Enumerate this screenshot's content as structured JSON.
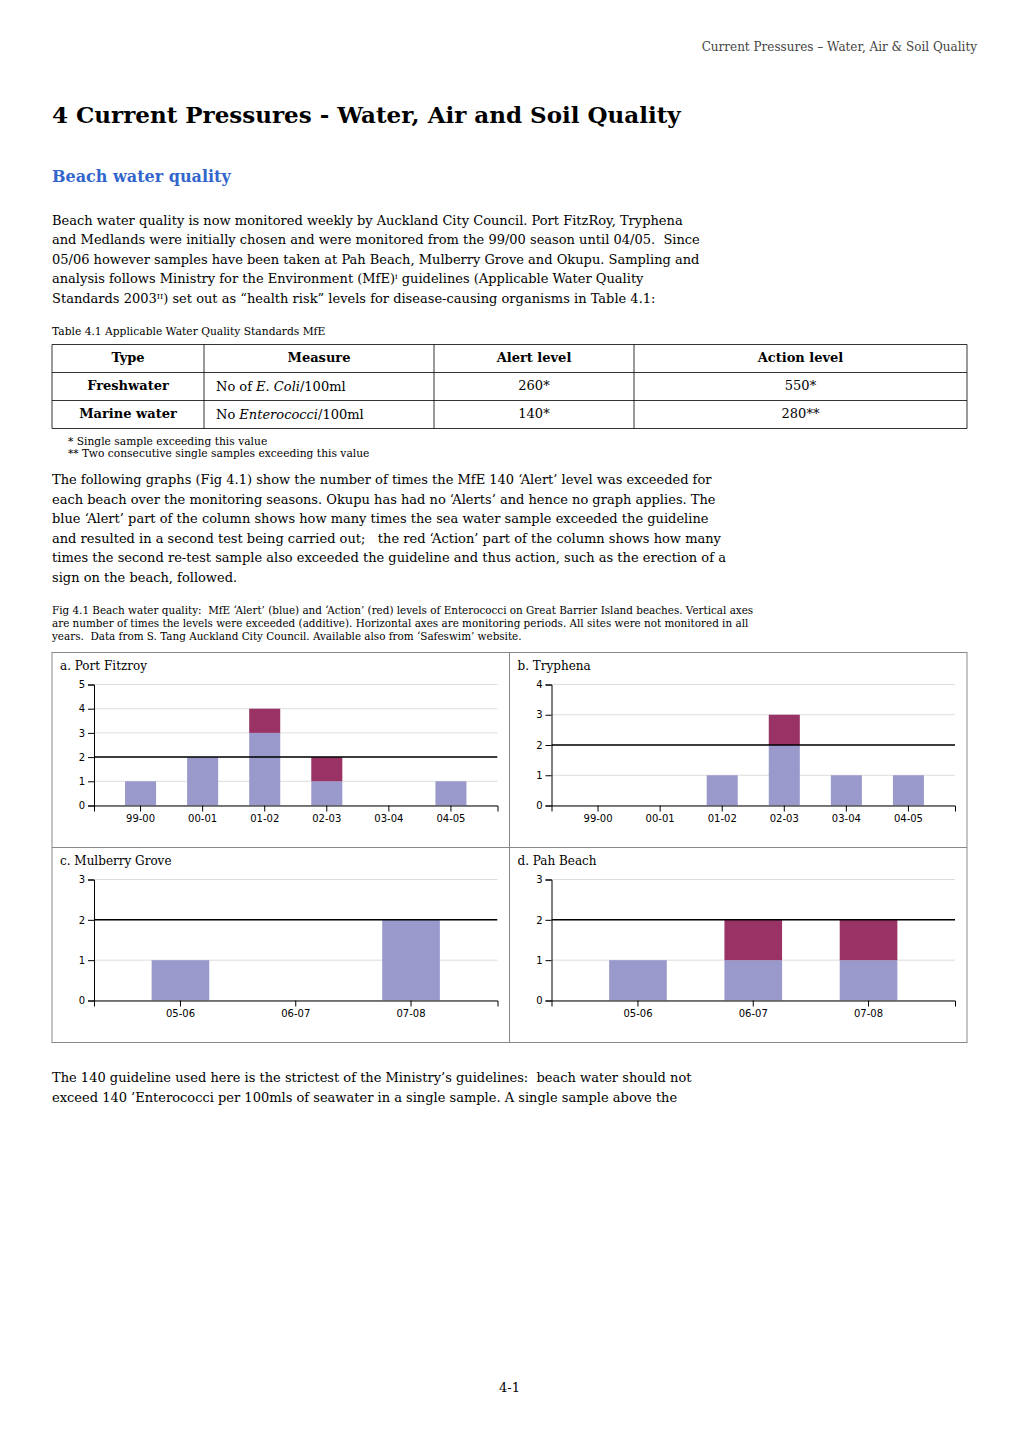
{
  "header": "Current Pressures – Water, Air & Soil Quality",
  "title": "4 Current Pressures - Water, Air and Soil Quality",
  "section_heading": "Beach water quality",
  "para1": [
    "Beach water quality is now monitored weekly by Auckland City Council. Port FitzRoy, Tryphena",
    "and Medlands were initially chosen and were monitored from the 99/00 season until 04/05.  Since",
    "05/06 however samples have been taken at Pah Beach, Mulberry Grove and Okupu. Sampling and",
    "analysis follows Ministry for the Environment (MfE)ⁱ guidelines (Applicable Water Quality",
    "Standards 2003ᴵᴵ) set out as “health risk” levels for disease-causing organisms in Table 4.1:"
  ],
  "table": {
    "caption": "Table 4.1 Applicable Water Quality Standards MfE",
    "headers": [
      "Type",
      "Measure",
      "Alert level",
      "Action level"
    ],
    "rows": [
      [
        "Freshwater",
        [
          "No of ",
          "E. Coli",
          "/100ml"
        ],
        "260*",
        "550*"
      ],
      [
        "Marine water",
        [
          "No ",
          "Enterococci",
          "/100ml"
        ],
        "140*",
        "280**"
      ]
    ],
    "notes": [
      "* Single sample exceeding this value",
      "** Two consecutive single samples exceeding this value"
    ]
  },
  "para2": [
    "The following graphs (Fig 4.1) show the number of times the MfE 140 ‘Alert’ level was exceeded for",
    "each beach over the monitoring seasons. Okupu has had no ‘Alerts’ and hence no graph applies. The",
    "blue ‘Alert’ part of the column shows how many times the sea water sample exceeded the guideline",
    "and resulted in a second test being carried out;   the red ‘Action’ part of the column shows how many",
    "times the second re-test sample also exceeded the guideline and thus action, such as the erection of a",
    "sign on the beach, followed."
  ],
  "figure_caption": [
    "Fig 4.1 Beach water quality:  MfE ‘Alert’ (blue) and ‘Action’ (red) levels of Enterococci on Great Barrier Island beaches. Vertical axes",
    "are number of times the levels were exceeded (additive). Horizontal axes are monitoring periods. All sites were not monitored in all",
    "years.  Data from S. Tang Auckland City Council. Available also from ‘Safeswim’ website."
  ],
  "para3": [
    "The 140 guideline used here is the strictest of the Ministry’s guidelines:  beach water should not",
    "exceed 140 ’Enterococci per 100mls of seawater in a single sample. A single sample above the"
  ],
  "page_number": "4-1",
  "chart_data": [
    {
      "type": "bar",
      "stacked": true,
      "title": "a. Port Fitzroy",
      "categories": [
        "99-00",
        "00-01",
        "01-02",
        "02-03",
        "03-04",
        "04-05"
      ],
      "series": [
        {
          "color": "#9999cc",
          "values": [
            1,
            2,
            3,
            1,
            0,
            1
          ]
        },
        {
          "color": "#993366",
          "values": [
            0,
            0,
            1,
            1,
            0,
            0
          ]
        }
      ],
      "ylim": [
        0,
        5
      ],
      "yticks": [
        0,
        1,
        2,
        3,
        4,
        5
      ],
      "grid": true,
      "hline": 2
    },
    {
      "type": "bar",
      "stacked": true,
      "title": "b. Tryphena",
      "categories": [
        "99-00",
        "00-01",
        "01-02",
        "02-03",
        "03-04",
        "04-05"
      ],
      "series": [
        {
          "color": "#9999cc",
          "values": [
            0,
            0,
            1,
            2,
            1,
            1
          ]
        },
        {
          "color": "#993366",
          "values": [
            0,
            0,
            0,
            1,
            0,
            0
          ]
        }
      ],
      "ylim": [
        0,
        4
      ],
      "yticks": [
        0,
        1,
        2,
        3,
        4
      ],
      "grid": true,
      "hline": 2
    },
    {
      "type": "bar",
      "stacked": true,
      "title": "c. Mulberry Grove",
      "categories": [
        "05-06",
        "06-07",
        "07-08"
      ],
      "series": [
        {
          "color": "#9999cc",
          "values": [
            1,
            0,
            2
          ]
        },
        {
          "color": "#993366",
          "values": [
            0,
            0,
            0
          ]
        }
      ],
      "ylim": [
        0,
        3
      ],
      "yticks": [
        0,
        1,
        2,
        3
      ],
      "grid": true,
      "hline": 2
    },
    {
      "type": "bar",
      "stacked": true,
      "title": "d. Pah Beach",
      "categories": [
        "05-06",
        "06-07",
        "07-08"
      ],
      "series": [
        {
          "color": "#9999cc",
          "values": [
            1,
            1,
            1
          ]
        },
        {
          "color": "#993366",
          "values": [
            0,
            1,
            1
          ]
        }
      ],
      "ylim": [
        0,
        3
      ],
      "yticks": [
        0,
        1,
        2,
        3
      ],
      "grid": true,
      "hline": 2
    }
  ]
}
